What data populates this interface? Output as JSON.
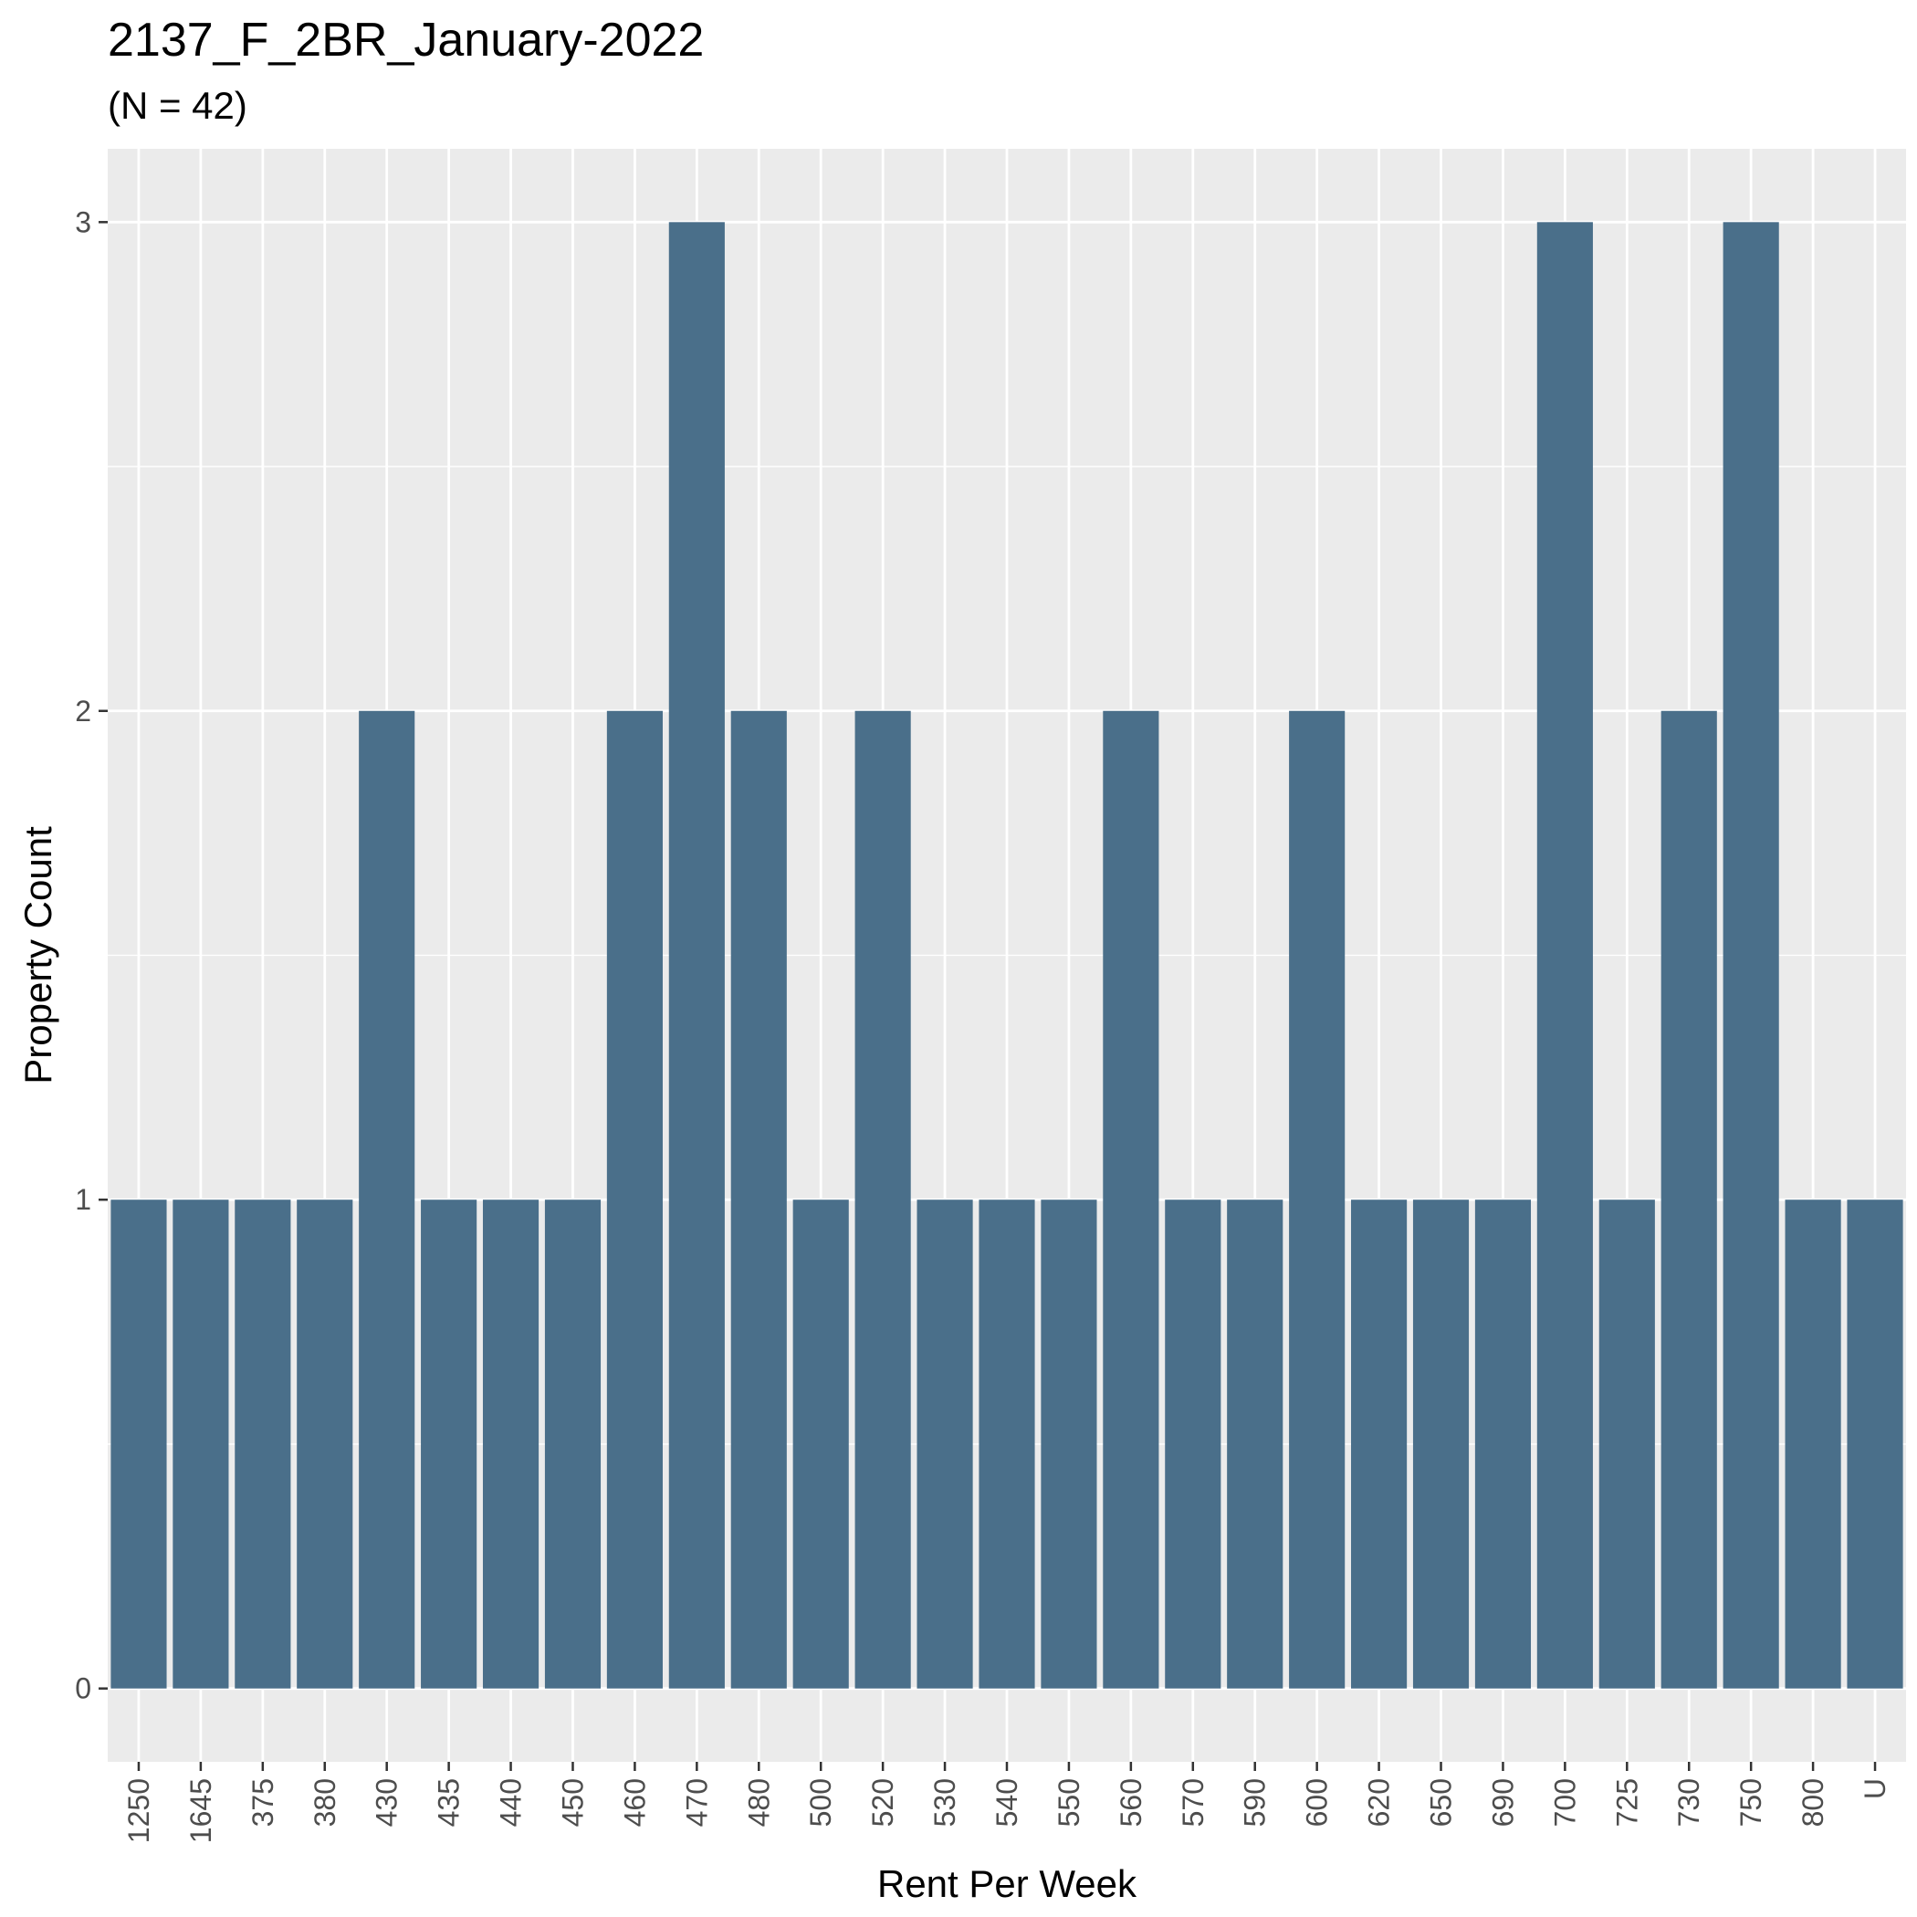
{
  "chart_data": {
    "type": "bar",
    "title": "2137_F_2BR_January-2022",
    "subtitle": "(N = 42)",
    "xlabel": "Rent Per Week",
    "ylabel": "Property Count",
    "categories": [
      "1250",
      "1645",
      "375",
      "380",
      "430",
      "435",
      "440",
      "450",
      "460",
      "470",
      "480",
      "500",
      "520",
      "530",
      "540",
      "550",
      "560",
      "570",
      "590",
      "600",
      "620",
      "650",
      "690",
      "700",
      "725",
      "730",
      "750",
      "800",
      "U"
    ],
    "values": [
      1,
      1,
      1,
      1,
      2,
      1,
      1,
      1,
      2,
      3,
      2,
      1,
      2,
      1,
      1,
      1,
      2,
      1,
      1,
      2,
      1,
      1,
      1,
      3,
      1,
      2,
      3,
      1,
      1
    ],
    "ylim": [
      -0.15,
      3.15
    ],
    "yticks": [
      0,
      1,
      2,
      3
    ],
    "grid": true,
    "colors": {
      "bar": "#4a6f8a",
      "panel": "#ebebeb",
      "grid_major": "#ffffff"
    }
  }
}
